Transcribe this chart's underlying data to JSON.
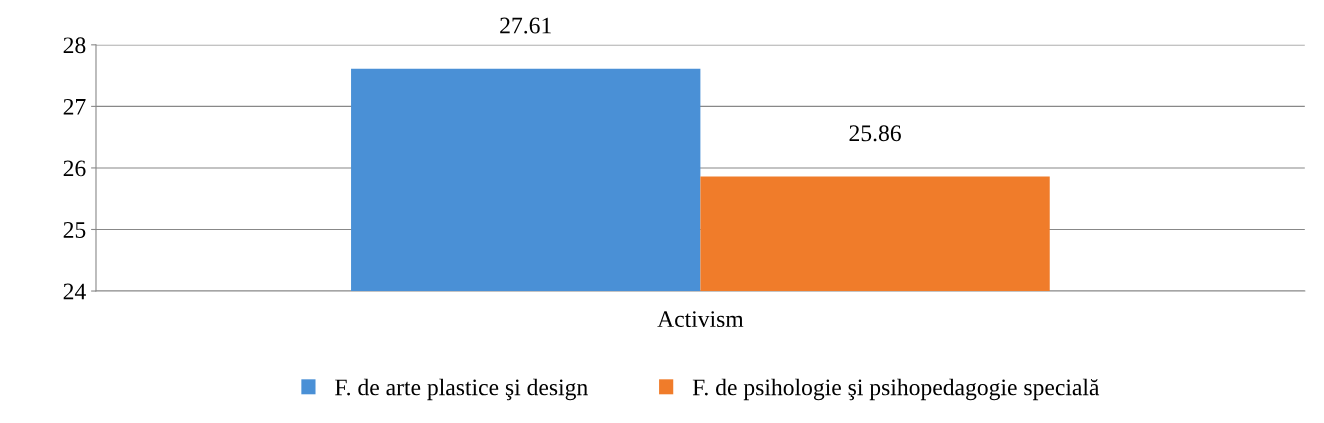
{
  "chart_data": {
    "type": "bar",
    "categories": [
      "Activism"
    ],
    "series": [
      {
        "name": "F. de arte plastice şi design",
        "color": "#4a90d6",
        "values": [
          27.61
        ]
      },
      {
        "name": "F. de psihologie şi psihopedagogie specială",
        "color": "#f07c2a",
        "values": [
          25.86
        ]
      }
    ],
    "ylim": [
      24,
      28
    ],
    "yticks": [
      24,
      25,
      26,
      27,
      28
    ],
    "grid": "y",
    "legend": "bottom",
    "data_labels": true
  }
}
